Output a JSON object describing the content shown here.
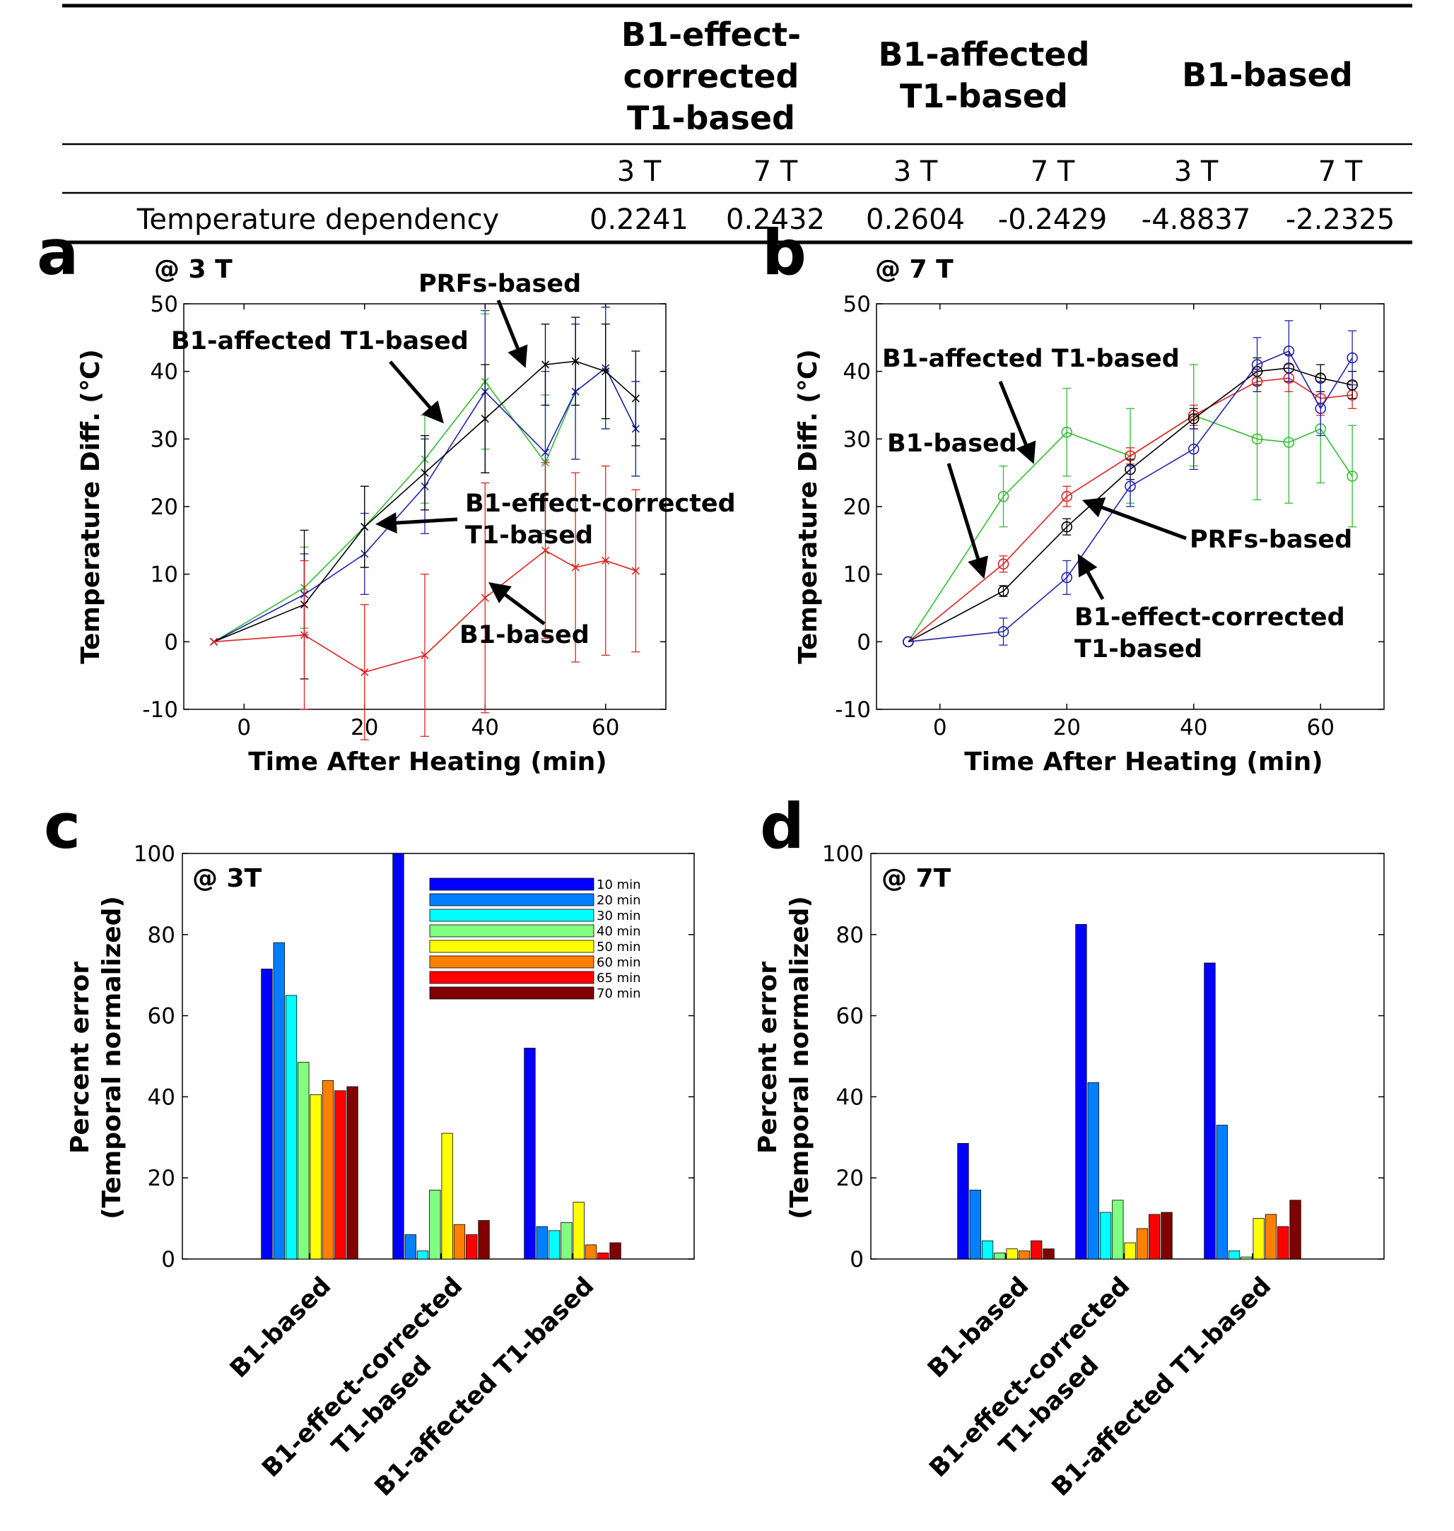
{
  "table": {
    "header_groups": [
      {
        "lines": [
          "B1-effect-",
          "corrected",
          "T1-based"
        ]
      },
      {
        "lines": [
          "B1-affected",
          "T1-based"
        ]
      },
      {
        "lines": [
          "B1-based"
        ]
      }
    ],
    "field_labels": [
      "3 T",
      "7 T",
      "3 T",
      "7 T",
      "3 T",
      "7 T"
    ],
    "row_label": "Temperature dependency",
    "row_values": [
      "0.2241",
      "0.2432",
      "0.2604",
      "-0.2429",
      "-4.8837",
      "-2.2325"
    ]
  },
  "colors": {
    "green": "#33bb33",
    "blue": "#2222aa",
    "black": "#000000",
    "red": "#dd2222",
    "bars": [
      "#0000ff",
      "#0080ff",
      "#00ffff",
      "#80ff80",
      "#ffff00",
      "#ff8000",
      "#ff0000",
      "#800000"
    ]
  },
  "chart_data": [
    {
      "panel": "a",
      "type": "line",
      "title": "@ 3 T",
      "xlabel": "Time After Heating (min)",
      "ylabel": "Temperature Diff. (℃)",
      "xlim": [
        -10,
        70
      ],
      "ylim": [
        -10,
        50
      ],
      "xticks": [
        0,
        20,
        40,
        60
      ],
      "yticks": [
        -10,
        0,
        10,
        20,
        30,
        40,
        50
      ],
      "marker": "x",
      "x": [
        -5,
        10,
        20,
        30,
        40,
        50,
        55,
        60,
        65
      ],
      "series": [
        {
          "name": "B1-affected T1-based",
          "color": "green",
          "values": [
            0,
            8,
            17,
            27,
            38.5,
            26.5,
            37,
            40.5,
            31.5
          ],
          "err": [
            0,
            6,
            6,
            6.5,
            10,
            10,
            10,
            9,
            7
          ]
        },
        {
          "name": "B1-effect-corrected T1-based",
          "color": "blue",
          "values": [
            0,
            7,
            13,
            23,
            37,
            28,
            37,
            40.5,
            31.5
          ],
          "err": [
            0,
            6,
            6,
            7,
            12,
            12,
            10,
            9,
            7
          ]
        },
        {
          "name": "PRFs-based",
          "color": "black",
          "values": [
            0,
            5.5,
            17,
            25,
            33,
            41,
            41.5,
            40,
            36
          ],
          "err": [
            0,
            11,
            6,
            5.5,
            8,
            6,
            6.5,
            7,
            7
          ]
        },
        {
          "name": "B1-based",
          "color": "red",
          "values": [
            0,
            1,
            -4.5,
            -2,
            6.5,
            13.5,
            11,
            12,
            10.5
          ],
          "err": [
            0,
            11,
            10,
            12,
            17,
            13,
            14,
            14,
            12
          ]
        }
      ],
      "annotations": [
        "PRFs-based",
        "B1-affected T1-based",
        "B1-effect-corrected",
        "T1-based",
        "B1-based"
      ]
    },
    {
      "panel": "b",
      "type": "line",
      "title": "@ 7 T",
      "xlabel": "Time After Heating (min)",
      "ylabel": "Temperature Diff. (℃)",
      "xlim": [
        -10,
        70
      ],
      "ylim": [
        -10,
        50
      ],
      "xticks": [
        0,
        20,
        40,
        60
      ],
      "yticks": [
        -10,
        0,
        10,
        20,
        30,
        40,
        50
      ],
      "marker": "o",
      "x": [
        -5,
        10,
        20,
        30,
        40,
        50,
        55,
        60,
        65
      ],
      "series": [
        {
          "name": "B1-affected T1-based",
          "color": "green",
          "values": [
            0,
            21.5,
            31,
            27.5,
            33.5,
            30,
            29.5,
            31.5,
            24.5
          ],
          "err": [
            0,
            4.5,
            6.5,
            7,
            7.5,
            9,
            9,
            8,
            7.5
          ]
        },
        {
          "name": "B1-based",
          "color": "red",
          "values": [
            0,
            11.5,
            21.5,
            27.5,
            33.5,
            38.5,
            39,
            36,
            36.5
          ],
          "err": [
            0,
            1.2,
            1.5,
            1.2,
            1.5,
            1.5,
            2,
            2.5,
            2
          ]
        },
        {
          "name": "PRFs-based",
          "color": "black",
          "values": [
            0,
            7.5,
            17,
            25.5,
            33,
            40,
            40.5,
            39,
            38
          ],
          "err": [
            0,
            0.8,
            1.2,
            1.5,
            1.5,
            2,
            2,
            2,
            2
          ]
        },
        {
          "name": "B1-effect-corrected T1-based",
          "color": "blue",
          "values": [
            0,
            1.5,
            9.5,
            23,
            28.5,
            41,
            43,
            34.5,
            42
          ],
          "err": [
            0,
            2,
            2.5,
            3,
            3,
            4,
            4.5,
            4,
            4
          ]
        }
      ],
      "annotations": [
        "B1-affected T1-based",
        "B1-based",
        "PRFs-based",
        "B1-effect-corrected",
        "T1-based"
      ]
    },
    {
      "panel": "c",
      "type": "bar",
      "title": "@ 3T",
      "ylabel_lines": [
        "Percent error",
        "(Temporal normalized)"
      ],
      "ylim": [
        0,
        100
      ],
      "yticks": [
        0,
        20,
        40,
        60,
        80,
        100
      ],
      "categories": [
        "B1-based",
        "B1-effect-corrected T1-based",
        "B1-affected T1-based"
      ],
      "category_label_lines": [
        [
          "B1-based"
        ],
        [
          "B1-effect-corrected",
          "T1-based"
        ],
        [
          "B1-affected T1-based"
        ]
      ],
      "legend": [
        "10 min",
        "20 min",
        "30 min",
        "40 min",
        "50 min",
        "60 min",
        "65 min",
        "70 min"
      ],
      "series": [
        {
          "name": "10 min",
          "values": [
            71.5,
            100,
            52
          ]
        },
        {
          "name": "20 min",
          "values": [
            78,
            6,
            8
          ]
        },
        {
          "name": "30 min",
          "values": [
            65,
            2,
            7
          ]
        },
        {
          "name": "40 min",
          "values": [
            48.5,
            17,
            9
          ]
        },
        {
          "name": "50 min",
          "values": [
            40.5,
            31,
            14
          ]
        },
        {
          "name": "60 min",
          "values": [
            44,
            8.5,
            3.5
          ]
        },
        {
          "name": "65 min",
          "values": [
            41.5,
            6,
            1.5
          ]
        },
        {
          "name": "70 min",
          "values": [
            42.5,
            9.5,
            4
          ]
        }
      ]
    },
    {
      "panel": "d",
      "type": "bar",
      "title": "@ 7T",
      "ylabel_lines": [
        "Percent error",
        "(Temporal normalized)"
      ],
      "ylim": [
        0,
        100
      ],
      "yticks": [
        0,
        20,
        40,
        60,
        80,
        100
      ],
      "categories": [
        "B1-based",
        "B1-effect-corrected T1-based",
        "B1-affected T1-based"
      ],
      "category_label_lines": [
        [
          "B1-based"
        ],
        [
          "B1-effect-corrected",
          "T1-based"
        ],
        [
          "B1-affected T1-based"
        ]
      ],
      "series": [
        {
          "name": "10 min",
          "values": [
            28.5,
            82.5,
            73
          ]
        },
        {
          "name": "20 min",
          "values": [
            17,
            43.5,
            33
          ]
        },
        {
          "name": "30 min",
          "values": [
            4.5,
            11.5,
            2
          ]
        },
        {
          "name": "40 min",
          "values": [
            1.5,
            14.5,
            0.5
          ]
        },
        {
          "name": "50 min",
          "values": [
            2.5,
            4,
            10
          ]
        },
        {
          "name": "60 min",
          "values": [
            2,
            7.5,
            11
          ]
        },
        {
          "name": "65 min",
          "values": [
            4.5,
            11,
            8
          ]
        },
        {
          "name": "70 min",
          "values": [
            2.5,
            11.5,
            14.5
          ]
        }
      ]
    }
  ],
  "panel_labels": [
    "a",
    "b",
    "c",
    "d"
  ]
}
